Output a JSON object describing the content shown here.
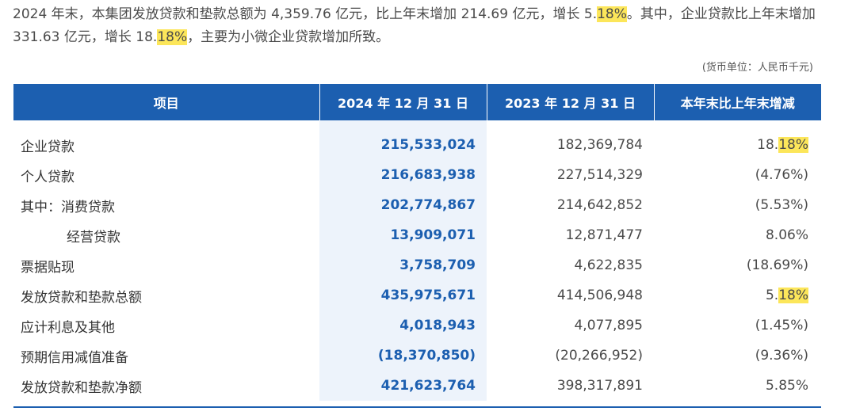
{
  "paragraph": {
    "part1": "2024 年末，本集团发放贷款和垫款总额为 4,359.76 亿元，比上年末增加 214.69 亿元，增长 5.",
    "hl1": "18%",
    "part2": "。其中，企业贷款比上年末增加 331.63 亿元，增长 18.",
    "hl2": "18%",
    "part3": "，主要为小微企业贷款增加所致。"
  },
  "unit_note": "(货币单位：人民币千元)",
  "table": {
    "headers": [
      "项目",
      "2024 年 12 月 31 日",
      "2023 年 12 月 31 日",
      "本年末比上年末增减"
    ],
    "rows": [
      {
        "name": "企业贷款",
        "cur": "215,533,024",
        "prev": "182,369,784",
        "chg_main": "18.",
        "chg_hl": "18%"
      },
      {
        "name": "个人贷款",
        "cur": "216,683,938",
        "prev": "227,514,329",
        "chg_main": "(4.76%)",
        "chg_hl": ""
      },
      {
        "name": "其中：消费贷款",
        "cur": "202,774,867",
        "prev": "214,642,852",
        "chg_main": "(5.53%)",
        "chg_hl": ""
      },
      {
        "name": "经营贷款",
        "cur": "13,909,071",
        "prev": "12,871,477",
        "chg_main": "8.06%",
        "chg_hl": ""
      },
      {
        "name": "票据贴现",
        "cur": "3,758,709",
        "prev": "4,622,835",
        "chg_main": "(18.69%)",
        "chg_hl": ""
      },
      {
        "name": "发放贷款和垫款总额",
        "cur": "435,975,671",
        "prev": "414,506,948",
        "chg_main": "5.",
        "chg_hl": "18%"
      },
      {
        "name": "应计利息及其他",
        "cur": "4,018,943",
        "prev": "4,077,895",
        "chg_main": "(1.45%)",
        "chg_hl": ""
      },
      {
        "name": "预期信用减值准备",
        "cur": "(18,370,850)",
        "prev": "(20,266,952)",
        "chg_main": "(9.36%)",
        "chg_hl": ""
      },
      {
        "name": "发放贷款和垫款净额",
        "cur": "421,623,764",
        "prev": "398,317,891",
        "chg_main": "5.85%",
        "chg_hl": ""
      }
    ]
  },
  "colors": {
    "header_bg": "#1c5fb0",
    "highlight": "#fce65a",
    "current_col_bg": "#edf3fb",
    "current_col_text": "#1c5fb0"
  }
}
